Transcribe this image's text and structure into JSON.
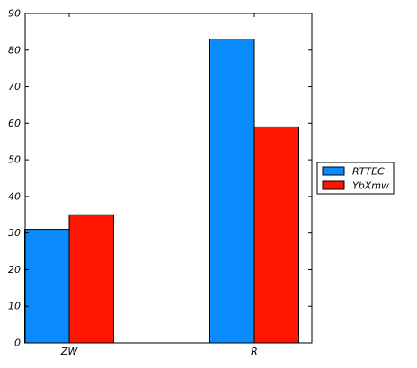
{
  "chart_data": {
    "type": "bar",
    "title": "",
    "xlabel": "",
    "ylabel": "",
    "categories": [
      "ZW",
      "R"
    ],
    "series": [
      {
        "name": "RTTEC",
        "values": [
          31,
          83
        ],
        "color": "#0a8cff"
      },
      {
        "name": "YbXmw",
        "values": [
          35,
          59
        ],
        "color": "#ff1500"
      }
    ],
    "ylim": [
      0,
      90
    ],
    "yticks": [
      0,
      10,
      20,
      30,
      40,
      50,
      60,
      70,
      80,
      90
    ],
    "grid": false,
    "legend_position": "right"
  }
}
